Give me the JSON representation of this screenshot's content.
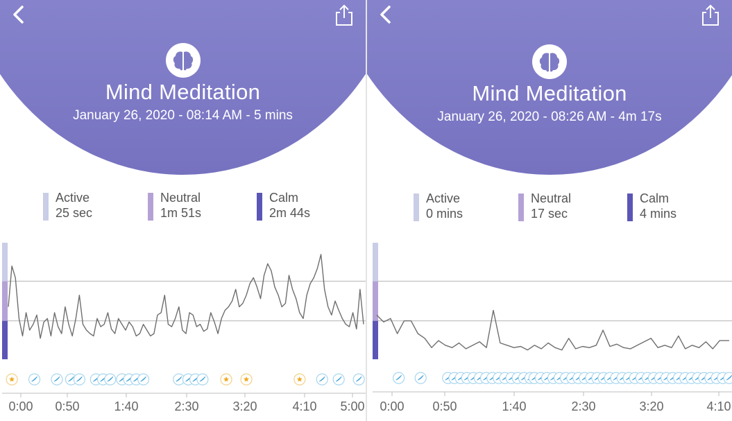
{
  "colors": {
    "header_top": "#9b9ad8",
    "header_bottom": "#7672c0",
    "active": "#c9cde6",
    "neutral": "#b4a2d6",
    "calm": "#5b56b5",
    "line": "#6e6e6e",
    "star_marker": "#f0a81c",
    "bird_marker": "#3aa0d8"
  },
  "panels": [
    {
      "header": {
        "back_icon": "chevron-left-icon",
        "share_icon": "share-icon",
        "session_icon": "brain-icon",
        "title": "Mind Meditation",
        "subtitle": "January 26, 2020 - 08:14 AM - 5 mins"
      },
      "legend": [
        {
          "label": "Active",
          "value": "25 sec"
        },
        {
          "label": "Neutral",
          "value": "1m 51s"
        },
        {
          "label": "Calm",
          "value": "2m 44s"
        }
      ],
      "chart_data": {
        "type": "line",
        "x_ticks": [
          "0:00",
          "0:50",
          "1:40",
          "2:30",
          "3:20",
          "4:10",
          "5:00"
        ],
        "x_range_sec": [
          0,
          300
        ],
        "y_range": [
          0,
          100
        ],
        "zones": [
          "calm",
          "neutral",
          "active"
        ],
        "zone_bounds": [
          0,
          33,
          67,
          100
        ],
        "series": [
          {
            "x": [
              0,
              3,
              6,
              9,
              12,
              15,
              18,
              21,
              24,
              27,
              30,
              33,
              36,
              39,
              42,
              45,
              48,
              51,
              54,
              57,
              60,
              63,
              66,
              69,
              72,
              75,
              78,
              81,
              84,
              87,
              90,
              93,
              96,
              99,
              102,
              105,
              108,
              111,
              114,
              117,
              120,
              123,
              126,
              129,
              132,
              135,
              138,
              141,
              144,
              147,
              150,
              153,
              156,
              159,
              162,
              165,
              168,
              171,
              174,
              177,
              180,
              183,
              186,
              189,
              192,
              195,
              198,
              201,
              204,
              207,
              210,
              213,
              216,
              219,
              222,
              225,
              228,
              231,
              234,
              237,
              240,
              243,
              246,
              249,
              252,
              255,
              258,
              261,
              264,
              267,
              270,
              273,
              276,
              279,
              282,
              285,
              288,
              291,
              294,
              297,
              300
            ],
            "y": [
              45,
              80,
              70,
              35,
              20,
              40,
              25,
              30,
              38,
              18,
              32,
              35,
              20,
              40,
              28,
              22,
              45,
              30,
              20,
              35,
              55,
              30,
              25,
              22,
              20,
              35,
              28,
              30,
              40,
              26,
              22,
              35,
              30,
              25,
              32,
              28,
              20,
              22,
              30,
              25,
              20,
              22,
              38,
              40,
              55,
              30,
              28,
              35,
              45,
              25,
              22,
              40,
              38,
              28,
              30,
              24,
              26,
              40,
              32,
              22,
              35,
              42,
              45,
              50,
              60,
              45,
              48,
              55,
              65,
              70,
              62,
              52,
              72,
              82,
              76,
              62,
              55,
              45,
              48,
              72,
              60,
              52,
              40,
              35,
              55,
              65,
              70,
              78,
              90,
              60,
              45,
              38,
              50,
              42,
              35,
              30,
              28,
              40,
              26,
              60,
              30
            ]
          }
        ],
        "markers": [
          {
            "t": 3,
            "kind": "star"
          },
          {
            "t": 22,
            "kind": "bird"
          },
          {
            "t": 41,
            "kind": "bird"
          },
          {
            "t": 53,
            "kind": "bird"
          },
          {
            "t": 60,
            "kind": "bird"
          },
          {
            "t": 74,
            "kind": "bird"
          },
          {
            "t": 80,
            "kind": "bird"
          },
          {
            "t": 86,
            "kind": "bird"
          },
          {
            "t": 96,
            "kind": "bird"
          },
          {
            "t": 102,
            "kind": "bird"
          },
          {
            "t": 108,
            "kind": "bird"
          },
          {
            "t": 114,
            "kind": "bird"
          },
          {
            "t": 144,
            "kind": "bird"
          },
          {
            "t": 152,
            "kind": "bird"
          },
          {
            "t": 158,
            "kind": "bird"
          },
          {
            "t": 164,
            "kind": "bird"
          },
          {
            "t": 184,
            "kind": "star"
          },
          {
            "t": 201,
            "kind": "star"
          },
          {
            "t": 246,
            "kind": "star"
          },
          {
            "t": 265,
            "kind": "bird"
          },
          {
            "t": 279,
            "kind": "bird"
          },
          {
            "t": 296,
            "kind": "bird"
          }
        ]
      }
    },
    {
      "header": {
        "back_icon": "chevron-left-icon",
        "share_icon": "share-icon",
        "session_icon": "brain-icon",
        "title": "Mind Meditation",
        "subtitle": "January 26, 2020 - 08:26 AM - 4m 17s"
      },
      "legend": [
        {
          "label": "Active",
          "value": "0 mins"
        },
        {
          "label": "Neutral",
          "value": "17 sec"
        },
        {
          "label": "Calm",
          "value": "4 mins"
        }
      ],
      "chart_data": {
        "type": "line",
        "x_ticks": [
          "0:00",
          "0:50",
          "1:40",
          "2:30",
          "3:20",
          "4:10"
        ],
        "x_range_sec": [
          0,
          257
        ],
        "y_range": [
          0,
          100
        ],
        "zones": [
          "calm",
          "neutral",
          "active"
        ],
        "zone_bounds": [
          0,
          33,
          67,
          100
        ],
        "series": [
          {
            "x": [
              0,
              5,
              10,
              15,
              20,
              25,
              30,
              35,
              40,
              45,
              50,
              55,
              60,
              65,
              70,
              75,
              80,
              85,
              90,
              95,
              100,
              105,
              110,
              115,
              120,
              125,
              130,
              135,
              140,
              145,
              150,
              155,
              160,
              165,
              170,
              175,
              180,
              185,
              190,
              195,
              200,
              205,
              210,
              215,
              220,
              225,
              230,
              235,
              240,
              245,
              250,
              257
            ],
            "y": [
              38,
              32,
              35,
              22,
              33,
              33,
              22,
              18,
              10,
              16,
              12,
              10,
              14,
              9,
              12,
              15,
              10,
              42,
              14,
              12,
              10,
              11,
              8,
              12,
              9,
              14,
              10,
              8,
              18,
              9,
              11,
              10,
              12,
              25,
              11,
              13,
              10,
              9,
              12,
              15,
              18,
              10,
              12,
              10,
              20,
              9,
              12,
              10,
              15,
              9,
              16,
              16
            ]
          }
        ],
        "markers": [
          {
            "t": 16,
            "kind": "bird"
          },
          {
            "t": 32,
            "kind": "bird"
          }
        ],
        "marker_runs": [
          {
            "from": 52,
            "to": 112,
            "kind": "bird"
          },
          {
            "from": 115,
            "to": 257,
            "kind": "bird"
          }
        ]
      }
    }
  ]
}
